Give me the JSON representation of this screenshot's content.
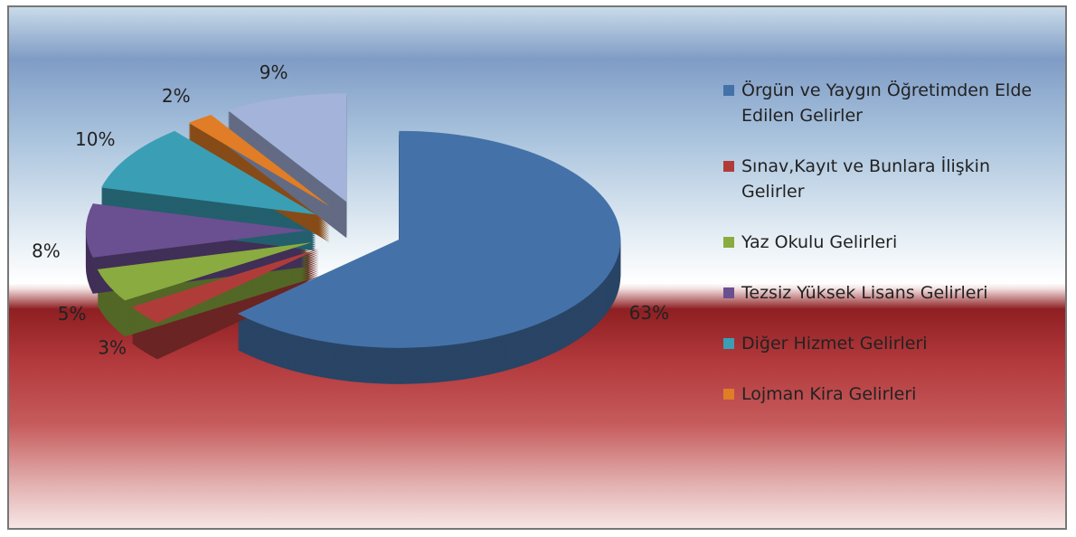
{
  "chart_data": {
    "type": "pie",
    "categories": [
      "Örgün ve Yaygın Öğretimden Elde Edilen Gelirler",
      "Sınav,Kayıt ve Bunlara İlişkin Gelirler",
      "Yaz Okulu Gelirleri",
      "Tezsiz Yüksek Lisans Gelirleri",
      "Diğer Hizmet Gelirleri",
      "Lojman Kira Gelirleri",
      null
    ],
    "values": [
      63,
      3,
      5,
      8,
      10,
      2,
      9
    ],
    "value_labels": [
      "63%",
      "3%",
      "5%",
      "8%",
      "10%",
      "2%",
      "9%"
    ],
    "colors": [
      "#4472a8",
      "#b03c3a",
      "#8aab3f",
      "#6a4f91",
      "#3a9fb5",
      "#e07d26",
      "#a3b3da"
    ]
  }
}
